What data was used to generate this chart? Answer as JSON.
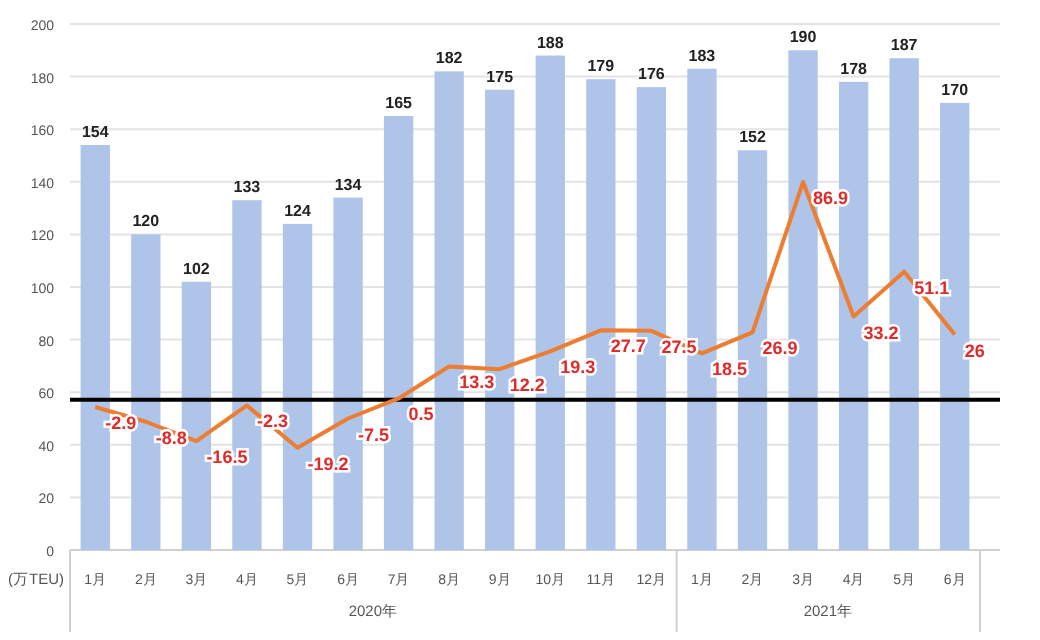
{
  "chart_data": {
    "type": "bar",
    "ylabel": "(万TEU)",
    "categories": [
      "1月",
      "2月",
      "3月",
      "4月",
      "5月",
      "6月",
      "7月",
      "8月",
      "9月",
      "10月",
      "11月",
      "12月",
      "1月",
      "2月",
      "3月",
      "4月",
      "5月",
      "6月"
    ],
    "series": [
      {
        "type": "bar",
        "color": "#aec4e8",
        "values": [
          154,
          120,
          102,
          133,
          124,
          134,
          165,
          182,
          175,
          188,
          179,
          176,
          183,
          152,
          190,
          178,
          187,
          170
        ]
      },
      {
        "type": "line",
        "axis": "y2",
        "color": "#ed7d31",
        "values": [
          -2.9,
          -8.8,
          -16.5,
          -2.3,
          -19.2,
          -7.5,
          0.5,
          13.3,
          12.2,
          19.3,
          27.7,
          27.5,
          18.5,
          26.9,
          86.9,
          33.2,
          51.1,
          26
        ]
      }
    ],
    "ylim": [
      0,
      200
    ],
    "yticks": [
      0,
      20,
      40,
      60,
      80,
      100,
      120,
      140,
      160,
      180,
      200
    ],
    "y2lim": [
      -60,
      150
    ],
    "ref_lines": [
      {
        "axis": "y2",
        "value": 0,
        "color": "#000000"
      }
    ],
    "annotations": [
      "2020年",
      "2021年"
    ],
    "data_labels": true,
    "grid": "y"
  }
}
